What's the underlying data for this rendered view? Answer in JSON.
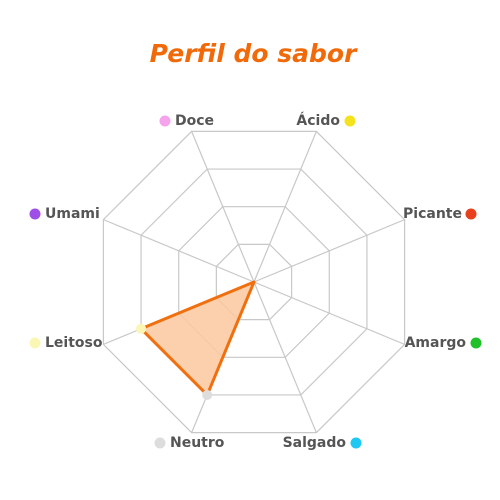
{
  "chart_data": {
    "type": "radar",
    "title": "Perfil do sabor",
    "categories": [
      "Doce",
      "Ácido",
      "Picante",
      "Amargo",
      "Salgado",
      "Neutro",
      "Leitoso",
      "Umami"
    ],
    "category_colors": [
      "#f4a3ec",
      "#f5e21e",
      "#e8401c",
      "#22c02a",
      "#1ec8f2",
      "#dddddd",
      "#faf6b4",
      "#a04ee8"
    ],
    "values": [
      0,
      0,
      0,
      0,
      0,
      3,
      3,
      0
    ],
    "color": "#f07010",
    "fill": "#fcc89e",
    "rlim": [
      0,
      4
    ],
    "rticks": [
      1,
      2,
      3,
      4
    ],
    "grid": true
  }
}
